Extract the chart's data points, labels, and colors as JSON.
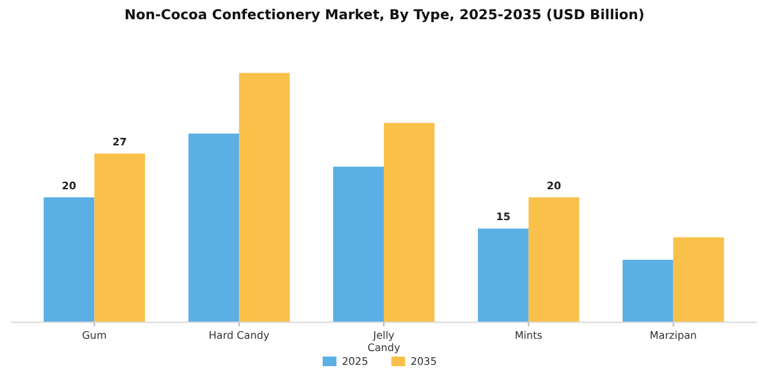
{
  "chart_data": {
    "type": "bar",
    "title": "Non-Cocoa Confectionery Market, By Type, 2025-2035 (USD Billion)",
    "categories": [
      "Gum",
      "Hard Candy",
      "Jelly\nCandy",
      "Mints",
      "Marzipan"
    ],
    "series": [
      {
        "name": "2025",
        "color": "#5aafe4",
        "values": [
          20,
          30.2,
          24.9,
          15,
          10
        ],
        "value_labels": [
          "20",
          null,
          null,
          "15",
          null
        ]
      },
      {
        "name": "2035",
        "color": "#f9c04a",
        "values": [
          27,
          39.9,
          31.9,
          20,
          13.6
        ],
        "value_labels": [
          "27",
          null,
          null,
          "20",
          null
        ]
      }
    ],
    "tick_labels": "x",
    "legend": "bottom"
  }
}
